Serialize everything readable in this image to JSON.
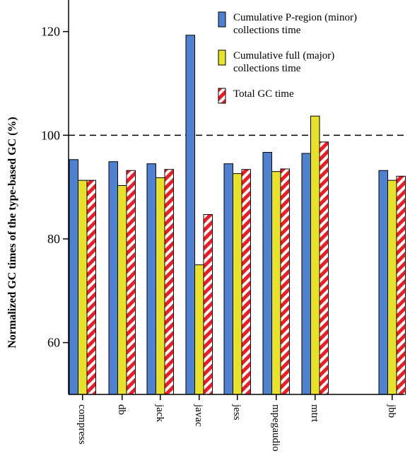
{
  "chart_data": {
    "type": "bar",
    "title": "",
    "xlabel": "",
    "ylabel": "Normalized GC times of the  type-based GC (%)",
    "ylim": [
      50,
      125
    ],
    "yticks": [
      60,
      80,
      100,
      120
    ],
    "reference_line": 100,
    "grid": false,
    "legend_position": "top-right",
    "categories": [
      "compress",
      "db",
      "jack",
      "javac",
      "jess",
      "mpegaudio",
      "mtrt",
      "jbb"
    ],
    "series": [
      {
        "name": "Cumulative P-region (minor) collections time",
        "legend_lines": [
          "Cumulative P-region (minor)",
          "collections time"
        ],
        "color": "#4f81d1",
        "pattern": "solid",
        "values": [
          95.3,
          94.9,
          94.5,
          119.3,
          94.5,
          96.7,
          96.5,
          93.2
        ]
      },
      {
        "name": "Cumulative full (major) collections time",
        "legend_lines": [
          "Cumulative full (major)",
          "collections time"
        ],
        "color": "#e8e22a",
        "pattern": "solid",
        "values": [
          91.3,
          90.3,
          91.8,
          75.0,
          92.6,
          93.0,
          103.7,
          91.3
        ]
      },
      {
        "name": "Total GC time",
        "legend_lines": [
          "Total GC time"
        ],
        "color": "#ee1c24",
        "pattern": "stripes",
        "values": [
          91.3,
          93.2,
          93.4,
          84.7,
          93.4,
          93.5,
          98.7,
          92.1
        ]
      }
    ]
  }
}
